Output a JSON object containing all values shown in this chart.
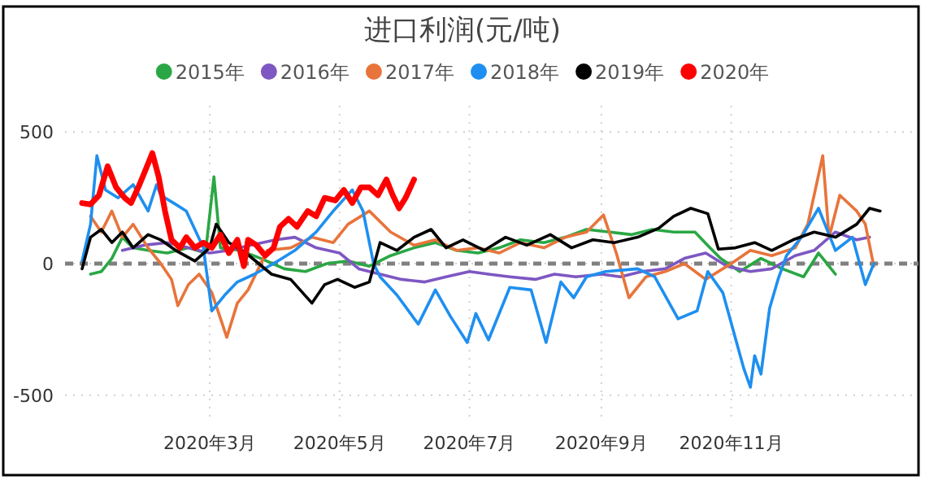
{
  "chart_data": {
    "type": "line",
    "title": "进口利润(元/吨)",
    "legend": "top",
    "grid": true,
    "line_style": "solid",
    "xlim": [
      "2019-12-24",
      "2021-01-28"
    ],
    "ylim": [
      -600,
      600
    ],
    "xticks": [
      {
        "value": "2020-03-01",
        "label": "2020年3月"
      },
      {
        "value": "2020-05-01",
        "label": "2020年5月"
      },
      {
        "value": "2020-07-01",
        "label": "2020年7月"
      },
      {
        "value": "2020-09-01",
        "label": "2020年9月"
      },
      {
        "value": "2020-11-01",
        "label": "2020年11月"
      }
    ],
    "yticks": [
      -500,
      0,
      500
    ],
    "ref_lines": [
      {
        "axis": "y",
        "value": 0,
        "color": "#808080",
        "line_style": "dashed"
      }
    ],
    "series": [
      {
        "name": "2015年",
        "color": "#2aa744",
        "x": [
          "2020-01-05",
          "2020-01-10",
          "2020-01-15",
          "2020-01-20",
          "2020-01-25",
          "2020-02-01",
          "2020-02-10",
          "2020-02-20",
          "2020-02-28",
          "2020-03-03",
          "2020-03-06",
          "2020-03-15",
          "2020-03-25",
          "2020-04-05",
          "2020-04-15",
          "2020-04-25",
          "2020-05-05",
          "2020-05-15",
          "2020-05-25",
          "2020-06-05",
          "2020-06-15",
          "2020-06-25",
          "2020-07-05",
          "2020-07-15",
          "2020-07-25",
          "2020-08-05",
          "2020-08-15",
          "2020-08-25",
          "2020-09-05",
          "2020-09-15",
          "2020-09-25",
          "2020-10-05",
          "2020-10-15",
          "2020-10-22",
          "2020-10-27",
          "2020-11-05",
          "2020-11-15",
          "2020-11-25",
          "2020-12-05",
          "2020-12-12",
          "2020-12-20"
        ],
        "values": [
          -40,
          -30,
          20,
          100,
          60,
          50,
          40,
          60,
          40,
          330,
          60,
          50,
          20,
          -20,
          -30,
          0,
          10,
          -10,
          30,
          60,
          80,
          50,
          40,
          60,
          90,
          80,
          100,
          130,
          120,
          110,
          130,
          120,
          120,
          60,
          20,
          -30,
          20,
          -20,
          -50,
          40,
          -40
        ]
      },
      {
        "name": "2016年",
        "color": "#7e57c2",
        "x": [
          "2020-01-20",
          "2020-01-30",
          "2020-02-10",
          "2020-02-20",
          "2020-03-01",
          "2020-03-10",
          "2020-03-20",
          "2020-04-01",
          "2020-04-10",
          "2020-04-20",
          "2020-05-01",
          "2020-05-10",
          "2020-05-20",
          "2020-05-30",
          "2020-06-10",
          "2020-06-20",
          "2020-07-01",
          "2020-07-10",
          "2020-07-20",
          "2020-08-01",
          "2020-08-10",
          "2020-08-20",
          "2020-09-01",
          "2020-09-10",
          "2020-09-20",
          "2020-10-01",
          "2020-10-10",
          "2020-10-20",
          "2020-10-30",
          "2020-11-10",
          "2020-11-20",
          "2020-12-01",
          "2020-12-10",
          "2020-12-20",
          "2020-12-30",
          "2021-01-05"
        ],
        "values": [
          50,
          70,
          80,
          60,
          40,
          50,
          70,
          90,
          100,
          60,
          40,
          -20,
          -40,
          -60,
          -70,
          -50,
          -30,
          -40,
          -50,
          -60,
          -40,
          -50,
          -40,
          -50,
          -30,
          -20,
          20,
          40,
          -10,
          -30,
          -20,
          30,
          50,
          120,
          90,
          100
        ]
      },
      {
        "name": "2017年",
        "color": "#e8743b",
        "x": [
          "2020-01-05",
          "2020-01-10",
          "2020-01-15",
          "2020-01-20",
          "2020-01-25",
          "2020-02-01",
          "2020-02-07",
          "2020-02-12",
          "2020-02-15",
          "2020-02-20",
          "2020-02-25",
          "2020-03-02",
          "2020-03-09",
          "2020-03-14",
          "2020-03-19",
          "2020-03-28",
          "2020-04-08",
          "2020-04-18",
          "2020-04-28",
          "2020-05-05",
          "2020-05-15",
          "2020-05-25",
          "2020-06-05",
          "2020-06-15",
          "2020-06-25",
          "2020-07-05",
          "2020-07-15",
          "2020-07-25",
          "2020-08-05",
          "2020-08-15",
          "2020-08-25",
          "2020-09-02",
          "2020-09-08",
          "2020-09-14",
          "2020-09-22",
          "2020-10-01",
          "2020-10-10",
          "2020-10-20",
          "2020-11-01",
          "2020-11-10",
          "2020-11-20",
          "2020-12-01",
          "2020-12-07",
          "2020-12-14",
          "2020-12-17",
          "2020-12-22",
          "2020-12-30",
          "2021-01-03",
          "2021-01-07"
        ],
        "values": [
          180,
          120,
          200,
          100,
          150,
          60,
          0,
          -60,
          -160,
          -80,
          -40,
          -110,
          -280,
          -150,
          -100,
          50,
          60,
          100,
          80,
          150,
          200,
          120,
          70,
          90,
          50,
          60,
          40,
          80,
          60,
          100,
          120,
          185,
          40,
          -130,
          -50,
          -30,
          0,
          -60,
          0,
          50,
          30,
          60,
          150,
          410,
          100,
          260,
          200,
          150,
          -10
        ]
      },
      {
        "name": "2018年",
        "color": "#1e8ff0",
        "x": [
          "2020-01-01",
          "2020-01-05",
          "2020-01-08",
          "2020-01-12",
          "2020-01-18",
          "2020-01-25",
          "2020-02-01",
          "2020-02-05",
          "2020-02-07",
          "2020-02-13",
          "2020-02-19",
          "2020-02-27",
          "2020-03-02",
          "2020-03-08",
          "2020-03-14",
          "2020-03-22",
          "2020-03-31",
          "2020-04-10",
          "2020-04-20",
          "2020-04-28",
          "2020-05-07",
          "2020-05-12",
          "2020-05-17",
          "2020-05-20",
          "2020-05-28",
          "2020-06-07",
          "2020-06-15",
          "2020-06-22",
          "2020-06-30",
          "2020-07-04",
          "2020-07-10",
          "2020-07-20",
          "2020-07-30",
          "2020-08-06",
          "2020-08-13",
          "2020-08-19",
          "2020-08-25",
          "2020-09-03",
          "2020-09-18",
          "2020-09-26",
          "2020-10-07",
          "2020-10-16",
          "2020-10-21",
          "2020-10-28",
          "2020-11-07",
          "2020-11-10",
          "2020-11-12",
          "2020-11-15",
          "2020-11-19",
          "2020-11-23",
          "2020-11-27",
          "2020-12-04",
          "2020-12-12",
          "2020-12-20",
          "2020-12-28",
          "2021-01-03",
          "2021-01-07"
        ],
        "values": [
          10,
          150,
          410,
          280,
          250,
          300,
          200,
          300,
          260,
          230,
          200,
          60,
          -180,
          -120,
          -70,
          -40,
          0,
          50,
          120,
          200,
          280,
          200,
          0,
          -50,
          -120,
          -230,
          -100,
          -200,
          -300,
          -190,
          -290,
          -90,
          -100,
          -300,
          -70,
          -130,
          -50,
          -30,
          -20,
          -50,
          -210,
          -180,
          -30,
          -110,
          -400,
          -470,
          -350,
          -420,
          -170,
          -60,
          30,
          100,
          210,
          50,
          100,
          -80,
          0
        ]
      },
      {
        "name": "2019年",
        "color": "#000000",
        "x": [
          "2020-01-01",
          "2020-01-05",
          "2020-01-10",
          "2020-01-15",
          "2020-01-20",
          "2020-01-25",
          "2020-02-01",
          "2020-02-07",
          "2020-02-14",
          "2020-02-23",
          "2020-03-01",
          "2020-03-04",
          "2020-03-10",
          "2020-03-18",
          "2020-03-30",
          "2020-04-08",
          "2020-04-18",
          "2020-04-24",
          "2020-04-30",
          "2020-05-08",
          "2020-05-15",
          "2020-05-20",
          "2020-05-28",
          "2020-06-05",
          "2020-06-13",
          "2020-06-20",
          "2020-06-28",
          "2020-07-08",
          "2020-07-18",
          "2020-07-28",
          "2020-08-08",
          "2020-08-18",
          "2020-08-28",
          "2020-09-07",
          "2020-09-18",
          "2020-09-28",
          "2020-10-05",
          "2020-10-13",
          "2020-10-21",
          "2020-10-26",
          "2020-11-03",
          "2020-11-12",
          "2020-11-20",
          "2020-11-30",
          "2020-12-10",
          "2020-12-20",
          "2020-12-30",
          "2021-01-05",
          "2021-01-10"
        ],
        "values": [
          -20,
          100,
          130,
          80,
          120,
          60,
          110,
          90,
          50,
          10,
          60,
          150,
          80,
          40,
          -40,
          -60,
          -150,
          -80,
          -60,
          -90,
          -70,
          80,
          50,
          100,
          130,
          60,
          90,
          50,
          100,
          70,
          110,
          60,
          90,
          80,
          100,
          135,
          180,
          210,
          190,
          55,
          60,
          80,
          50,
          90,
          120,
          100,
          150,
          210,
          200
        ]
      },
      {
        "name": "2020年",
        "color": "#ff0000",
        "x": [
          "2020-01-01",
          "2020-01-05",
          "2020-01-09",
          "2020-01-13",
          "2020-01-17",
          "2020-01-21",
          "2020-01-24",
          "2020-01-28",
          "2020-02-01",
          "2020-02-03",
          "2020-02-06",
          "2020-02-09",
          "2020-02-12",
          "2020-02-16",
          "2020-02-19",
          "2020-02-23",
          "2020-02-27",
          "2020-03-02",
          "2020-03-06",
          "2020-03-10",
          "2020-03-14",
          "2020-03-17",
          "2020-03-19",
          "2020-03-23",
          "2020-03-27",
          "2020-03-31",
          "2020-04-03",
          "2020-04-07",
          "2020-04-11",
          "2020-04-16",
          "2020-04-20",
          "2020-04-24",
          "2020-04-29",
          "2020-05-03",
          "2020-05-07",
          "2020-05-11",
          "2020-05-15",
          "2020-05-19",
          "2020-05-23",
          "2020-05-26",
          "2020-05-29",
          "2020-06-01",
          "2020-06-05"
        ],
        "values": [
          230,
          225,
          260,
          370,
          290,
          250,
          230,
          300,
          380,
          420,
          330,
          200,
          90,
          60,
          100,
          60,
          80,
          60,
          110,
          40,
          90,
          -10,
          90,
          70,
          30,
          60,
          140,
          170,
          140,
          200,
          180,
          250,
          240,
          280,
          230,
          290,
          290,
          260,
          320,
          260,
          210,
          250,
          320
        ]
      }
    ]
  }
}
